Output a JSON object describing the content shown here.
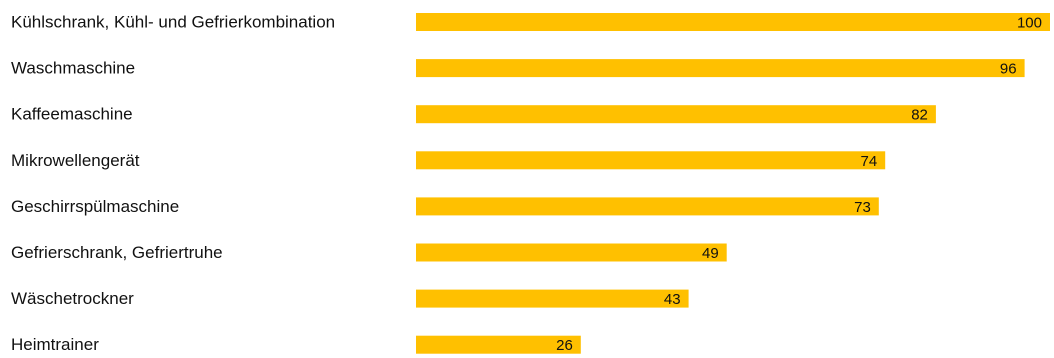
{
  "chart_data": {
    "type": "bar",
    "orientation": "horizontal",
    "categories": [
      "Kühlschrank, Kühl- und Gefrierkombination",
      "Waschmaschine",
      "Kaffeemaschine",
      "Mikrowellengerät",
      "Geschirrspülmaschine",
      "Gefrierschrank, Gefriertruhe",
      "Wäschetrockner",
      "Heimtrainer"
    ],
    "values": [
      100,
      96,
      82,
      74,
      73,
      49,
      43,
      26
    ],
    "data_labels": [
      "100",
      "96",
      "82",
      "74",
      "73",
      "49",
      "43",
      "26"
    ],
    "xlim": [
      0,
      100
    ],
    "grid": false,
    "legend": "none",
    "bar_color": "#FFC000",
    "text_color": "#111111"
  }
}
